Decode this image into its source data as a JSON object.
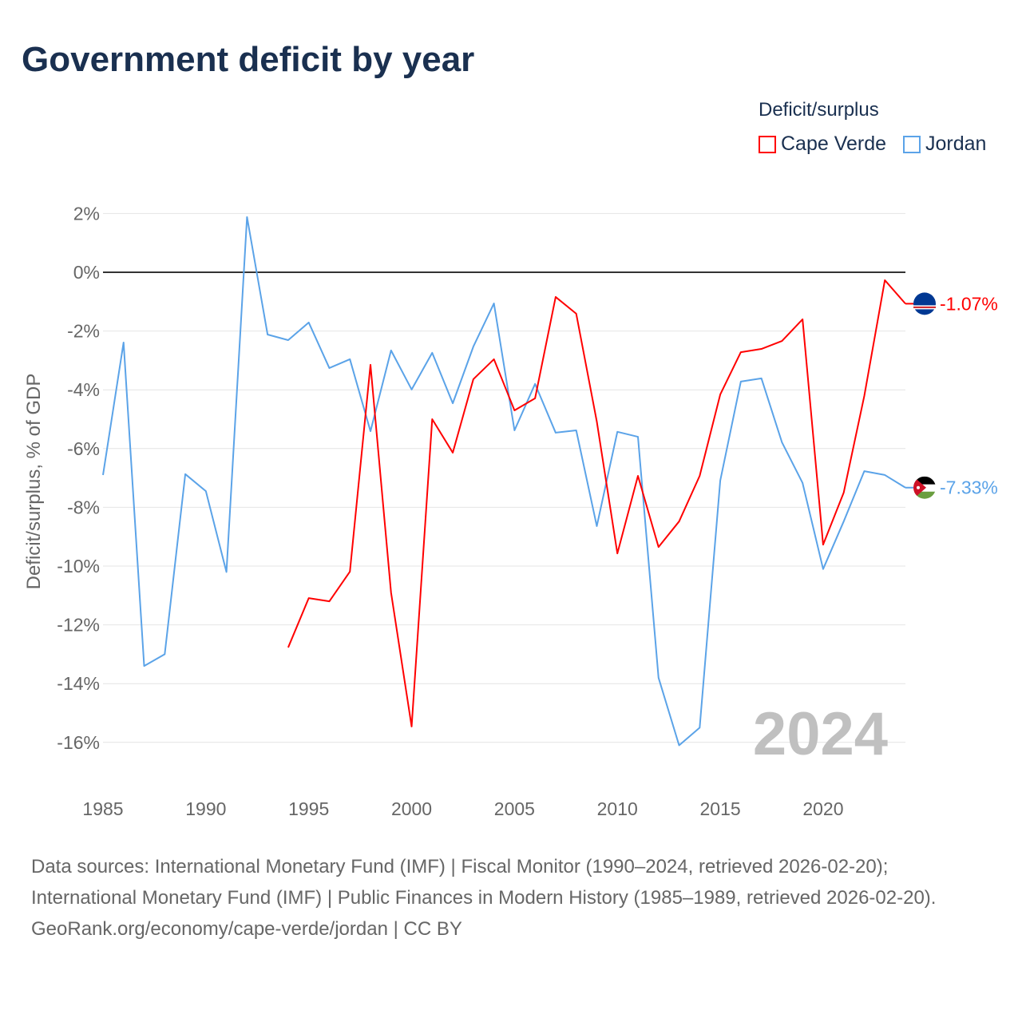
{
  "title": "Government deficit by year",
  "legend": {
    "title": "Deficit/surplus",
    "items": [
      {
        "label": "Cape Verde",
        "color": "#ff0000"
      },
      {
        "label": "Jordan",
        "color": "#5ba3e8"
      }
    ]
  },
  "footer": {
    "sources": "Data sources: International Monetary Fund (IMF) | Fiscal Monitor (1990–2024, retrieved 2026-02-20); International Monetary Fund (IMF) | Public Finances in Modern History (1985–1989, retrieved 2026-02-20).",
    "credit": "GeoRank.org/economy/cape-verde/jordan | CC BY"
  },
  "chart_data": {
    "type": "line",
    "title": "Government deficit by year",
    "xlabel": "",
    "ylabel": "Deficit/surplus, % of GDP",
    "xlim": [
      1985,
      2024
    ],
    "ylim": [
      -16,
      2
    ],
    "x_ticks": [
      1985,
      1990,
      1995,
      2000,
      2005,
      2010,
      2015,
      2020
    ],
    "x_tick_labels": [
      "1985",
      "1990",
      "1995",
      "2000",
      "2005",
      "2010",
      "2015",
      "2020"
    ],
    "y_ticks": [
      2,
      0,
      -2,
      -4,
      -6,
      -8,
      -10,
      -12,
      -14,
      -16
    ],
    "y_tick_labels": [
      "2%",
      "0%",
      "-2%",
      "-4%",
      "-6%",
      "-8%",
      "-10%",
      "-12%",
      "-14%",
      "-16%"
    ],
    "grid": true,
    "legend_position": "top-right",
    "year_watermark": "2024",
    "series": [
      {
        "name": "Cape Verde",
        "color": "#ff0000",
        "end_label": "-1.07%",
        "x": [
          1994,
          1995,
          1996,
          1997,
          1998,
          1999,
          2000,
          2001,
          2002,
          2003,
          2004,
          2005,
          2006,
          2007,
          2008,
          2009,
          2010,
          2011,
          2012,
          2013,
          2014,
          2015,
          2016,
          2017,
          2018,
          2019,
          2020,
          2021,
          2022,
          2023,
          2024
        ],
        "values": [
          -12.77,
          -11.09,
          -11.2,
          -10.19,
          -3.15,
          -10.9,
          -15.46,
          -5.0,
          -6.14,
          -3.64,
          -2.96,
          -4.7,
          -4.29,
          -0.84,
          -1.41,
          -5.08,
          -9.57,
          -6.93,
          -9.35,
          -8.48,
          -6.93,
          -4.16,
          -2.72,
          -2.61,
          -2.34,
          -1.6,
          -9.27,
          -7.5,
          -4.21,
          -0.27,
          -1.07
        ]
      },
      {
        "name": "Jordan",
        "color": "#5ba3e8",
        "end_label": "-7.33%",
        "x": [
          1985,
          1986,
          1987,
          1988,
          1989,
          1990,
          1991,
          1992,
          1993,
          1994,
          1995,
          1996,
          1997,
          1998,
          1999,
          2000,
          2001,
          2002,
          2003,
          2004,
          2005,
          2006,
          2007,
          2008,
          2009,
          2010,
          2011,
          2012,
          2013,
          2014,
          2015,
          2016,
          2017,
          2018,
          2019,
          2020,
          2021,
          2022,
          2023,
          2024
        ],
        "values": [
          -6.9,
          -2.39,
          -13.4,
          -13.0,
          -6.87,
          -7.45,
          -10.2,
          1.88,
          -2.12,
          -2.31,
          -1.71,
          -3.26,
          -2.96,
          -5.41,
          -2.66,
          -3.99,
          -2.74,
          -4.46,
          -2.53,
          -1.06,
          -5.38,
          -3.8,
          -5.46,
          -5.38,
          -8.64,
          -5.43,
          -5.6,
          -13.8,
          -16.1,
          -15.5,
          -7.09,
          -3.72,
          -3.61,
          -5.79,
          -7.17,
          -10.1,
          -8.48,
          -6.77,
          -6.9,
          -7.33
        ]
      }
    ]
  }
}
